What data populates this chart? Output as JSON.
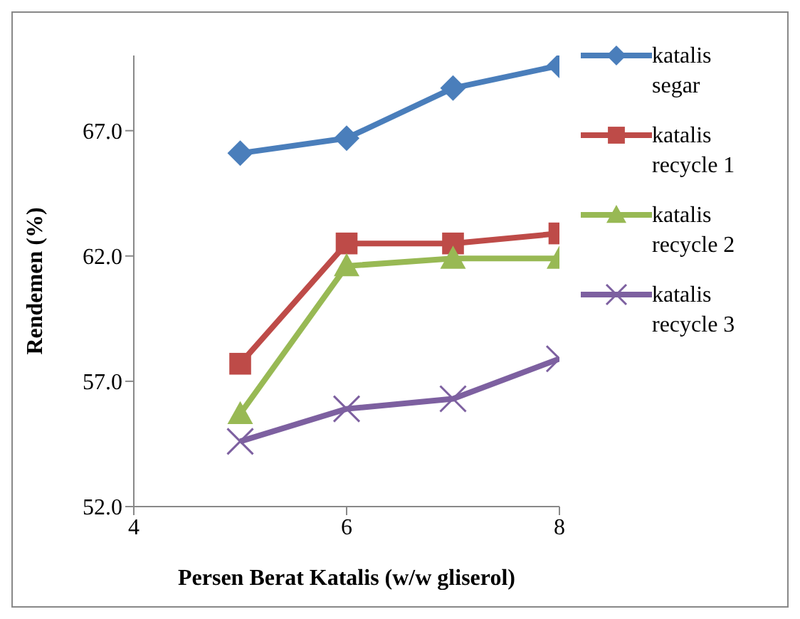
{
  "chart_data": {
    "type": "line",
    "xlabel": "Persen  Berat Katalis (w/w gliserol)",
    "ylabel": "Rendemen (%)",
    "x": [
      5,
      6,
      7,
      8
    ],
    "series": [
      {
        "name": "katalis segar",
        "color": "#4a7ebb",
        "marker": "diamond",
        "values": [
          66.1,
          66.7,
          68.7,
          69.6
        ]
      },
      {
        "name": "katalis recycle 1",
        "color": "#be4b48",
        "marker": "square",
        "values": [
          57.7,
          62.5,
          62.5,
          62.9
        ]
      },
      {
        "name": "katalis recycle 2",
        "color": "#98b954",
        "marker": "triangle",
        "values": [
          55.7,
          61.6,
          61.9,
          61.9
        ]
      },
      {
        "name": "katalis recycle 3",
        "color": "#7d60a0",
        "marker": "cross",
        "values": [
          54.6,
          55.9,
          56.3,
          57.9
        ]
      }
    ],
    "xlim": [
      4,
      8
    ],
    "xticks": [
      4,
      6,
      8
    ],
    "ylim": [
      52,
      70
    ],
    "yticks": [
      {
        "value": 52,
        "label": "52.0"
      },
      {
        "value": 57,
        "label": "57.0"
      },
      {
        "value": 62,
        "label": "62.0"
      },
      {
        "value": 67,
        "label": "67.0"
      }
    ],
    "grid": false,
    "legend": "right"
  }
}
